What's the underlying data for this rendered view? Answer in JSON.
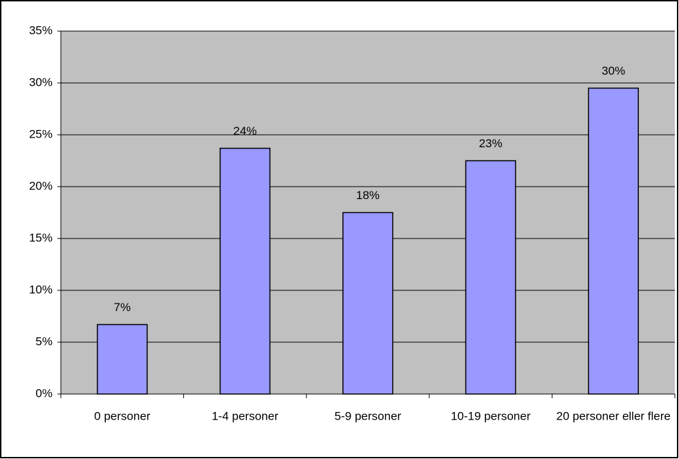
{
  "chart_data": {
    "type": "bar",
    "categories": [
      "0 personer",
      "1-4 personer",
      "5-9 personer",
      "10-19 personer",
      "20 personer eller flere"
    ],
    "values": [
      6.7,
      23.7,
      17.5,
      22.5,
      29.5
    ],
    "value_labels": [
      "7%",
      "24%",
      "18%",
      "23%",
      "30%"
    ],
    "color": "#9999ff",
    "ylim": [
      0,
      35
    ],
    "yticks": [
      {
        "value": 0,
        "label": "0%"
      },
      {
        "value": 5,
        "label": "5%"
      },
      {
        "value": 10,
        "label": "10%"
      },
      {
        "value": 15,
        "label": "15%"
      },
      {
        "value": 20,
        "label": "20%"
      },
      {
        "value": 25,
        "label": "25%"
      },
      {
        "value": 30,
        "label": "30%"
      },
      {
        "value": 35,
        "label": "35%"
      }
    ],
    "grid": true
  }
}
